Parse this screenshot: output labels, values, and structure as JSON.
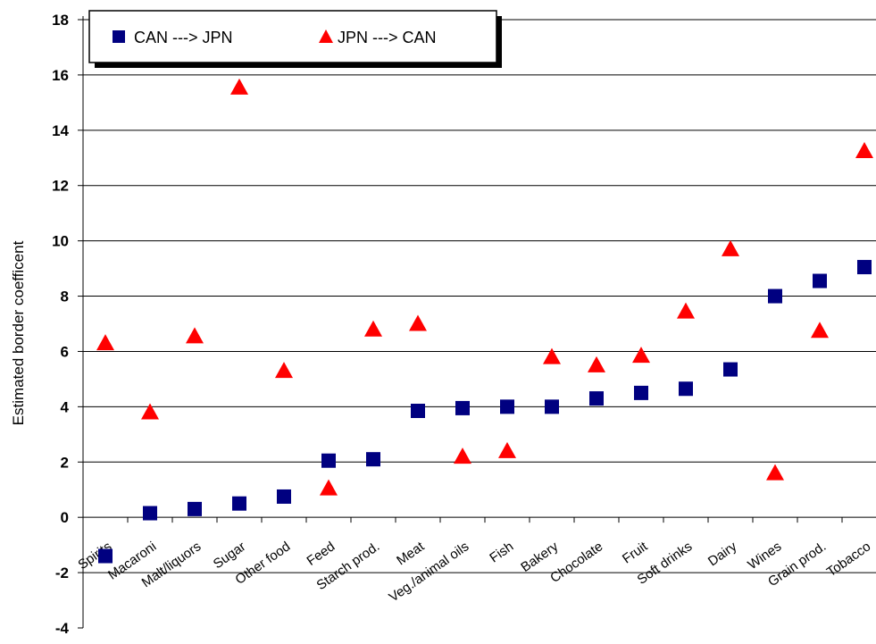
{
  "chart_data": {
    "type": "scatter",
    "categories": [
      "Spirits",
      "Macaroni",
      "Malt/liquors",
      "Sugar",
      "Other food",
      "Feed",
      "Starch prod.",
      "Meat",
      "Veg./animal oils",
      "Fish",
      "Bakery",
      "Chocolate",
      "Fruit",
      "Soft drinks",
      "Dairy",
      "Wines",
      "Grain prod.",
      "Tobacco"
    ],
    "series": [
      {
        "name": "CAN ---> JPN",
        "marker": "square",
        "color": "#000080",
        "values": [
          -1.4,
          0.15,
          0.3,
          0.5,
          0.75,
          2.05,
          2.1,
          3.85,
          3.95,
          4.0,
          4.0,
          4.3,
          4.5,
          4.65,
          5.35,
          8.0,
          8.55,
          9.05
        ]
      },
      {
        "name": "JPN ---> CAN",
        "marker": "triangle",
        "color": "#ff0000",
        "values": [
          6.3,
          3.8,
          6.55,
          15.55,
          5.3,
          1.05,
          6.8,
          7.0,
          2.2,
          2.4,
          5.8,
          5.5,
          5.85,
          7.45,
          9.7,
          1.6,
          6.75,
          13.25
        ]
      }
    ],
    "xlabel": "",
    "ylabel": "Estimated border coefficent",
    "ylim": [
      -4,
      18
    ],
    "yticks": [
      -4,
      -2,
      0,
      2,
      4,
      6,
      8,
      10,
      12,
      14,
      16,
      18
    ],
    "grid": true,
    "legend": "top-left"
  }
}
